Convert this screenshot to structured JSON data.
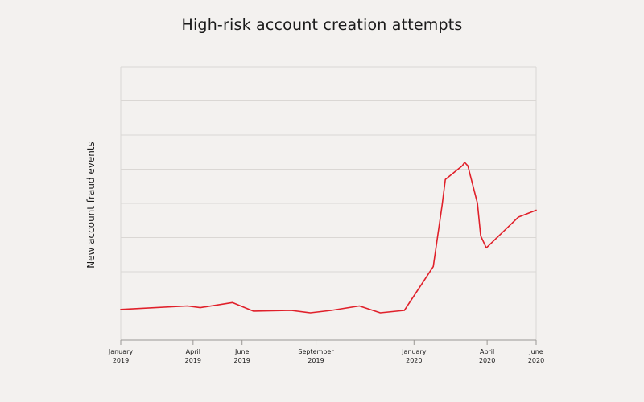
{
  "chart_data": {
    "type": "line",
    "title": "High-risk account creation attempts",
    "ylabel": "New account fraud events",
    "xlabel": "",
    "grid": "horizontal",
    "y_ticks_labeled": false,
    "x_ticks": [
      {
        "month": "January",
        "year": "2019",
        "x": "2019-01"
      },
      {
        "month": "April",
        "year": "2019",
        "x": "2019-04"
      },
      {
        "month": "June",
        "year": "2019",
        "x": "2019-06"
      },
      {
        "month": "September",
        "year": "2019",
        "x": "2019-09"
      },
      {
        "month": "January",
        "year": "2020",
        "x": "2020-01"
      },
      {
        "month": "April",
        "year": "2020",
        "x": "2020-04"
      },
      {
        "month": "June",
        "year": "2020",
        "x": "2020-06"
      }
    ],
    "series": [
      {
        "color": "#e0202a",
        "points": [
          {
            "x": "2019-01-01",
            "y": 0.9
          },
          {
            "x": "2019-03-25",
            "y": 1.0
          },
          {
            "x": "2019-04-10",
            "y": 0.95
          },
          {
            "x": "2019-05-20",
            "y": 1.1
          },
          {
            "x": "2019-06-15",
            "y": 0.85
          },
          {
            "x": "2019-08-01",
            "y": 0.87
          },
          {
            "x": "2019-08-25",
            "y": 0.8
          },
          {
            "x": "2019-09-20",
            "y": 0.87
          },
          {
            "x": "2019-10-25",
            "y": 1.0
          },
          {
            "x": "2019-11-20",
            "y": 0.8
          },
          {
            "x": "2019-12-20",
            "y": 0.87
          },
          {
            "x": "2020-01-25",
            "y": 2.15
          },
          {
            "x": "2020-02-05",
            "y": 3.95
          },
          {
            "x": "2020-02-09",
            "y": 4.7
          },
          {
            "x": "2020-03-01",
            "y": 5.1
          },
          {
            "x": "2020-03-04",
            "y": 5.2
          },
          {
            "x": "2020-03-08",
            "y": 5.1
          },
          {
            "x": "2020-03-20",
            "y": 4.0
          },
          {
            "x": "2020-03-24",
            "y": 3.05
          },
          {
            "x": "2020-03-31",
            "y": 2.7
          },
          {
            "x": "2020-05-10",
            "y": 3.6
          },
          {
            "x": "2020-06-01",
            "y": 3.8
          }
        ]
      }
    ]
  }
}
